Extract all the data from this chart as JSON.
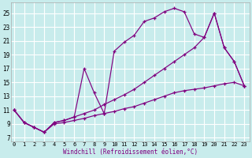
{
  "xlabel": "Windchill (Refroidissement éolien,°C)",
  "background_color": "#c8ecec",
  "line_color": "#800080",
  "grid_color": "#ffffff",
  "x_ticks": [
    0,
    1,
    2,
    3,
    4,
    5,
    6,
    7,
    8,
    9,
    10,
    11,
    12,
    13,
    14,
    15,
    16,
    17,
    18,
    19,
    20,
    21,
    22,
    23
  ],
  "y_ticks": [
    7,
    9,
    11,
    13,
    15,
    17,
    19,
    21,
    23,
    25
  ],
  "xlim": [
    -0.3,
    23.5
  ],
  "ylim": [
    6.5,
    26.5
  ],
  "series1": [
    [
      0,
      11.0
    ],
    [
      1,
      9.2
    ],
    [
      2,
      8.5
    ],
    [
      3,
      7.8
    ],
    [
      4,
      9.2
    ],
    [
      5,
      9.5
    ],
    [
      6,
      10.0
    ],
    [
      7,
      17.0
    ],
    [
      8,
      13.5
    ],
    [
      9,
      10.5
    ],
    [
      10,
      19.5
    ],
    [
      11,
      20.8
    ],
    [
      12,
      21.8
    ],
    [
      13,
      23.8
    ],
    [
      14,
      24.3
    ],
    [
      15,
      25.2
    ],
    [
      16,
      25.7
    ],
    [
      17,
      25.2
    ],
    [
      18,
      22.0
    ],
    [
      19,
      21.5
    ],
    [
      20,
      25.0
    ],
    [
      21,
      20.0
    ],
    [
      22,
      18.0
    ],
    [
      23,
      14.5
    ]
  ],
  "series2": [
    [
      0,
      11.0
    ],
    [
      1,
      9.2
    ],
    [
      2,
      8.5
    ],
    [
      3,
      7.8
    ],
    [
      4,
      9.2
    ],
    [
      5,
      9.5
    ],
    [
      6,
      10.0
    ],
    [
      7,
      10.5
    ],
    [
      8,
      11.0
    ],
    [
      9,
      11.8
    ],
    [
      10,
      12.5
    ],
    [
      11,
      13.2
    ],
    [
      12,
      14.0
    ],
    [
      13,
      15.0
    ],
    [
      14,
      16.0
    ],
    [
      15,
      17.0
    ],
    [
      16,
      18.0
    ],
    [
      17,
      19.0
    ],
    [
      18,
      20.0
    ],
    [
      19,
      21.5
    ],
    [
      20,
      25.0
    ],
    [
      21,
      20.0
    ],
    [
      22,
      18.0
    ],
    [
      23,
      14.5
    ]
  ],
  "series3": [
    [
      0,
      11.0
    ],
    [
      1,
      9.2
    ],
    [
      2,
      8.5
    ],
    [
      3,
      7.8
    ],
    [
      4,
      9.0
    ],
    [
      5,
      9.2
    ],
    [
      6,
      9.5
    ],
    [
      7,
      9.8
    ],
    [
      8,
      10.2
    ],
    [
      9,
      10.5
    ],
    [
      10,
      10.8
    ],
    [
      11,
      11.2
    ],
    [
      12,
      11.5
    ],
    [
      13,
      12.0
    ],
    [
      14,
      12.5
    ],
    [
      15,
      13.0
    ],
    [
      16,
      13.5
    ],
    [
      17,
      13.8
    ],
    [
      18,
      14.0
    ],
    [
      19,
      14.2
    ],
    [
      20,
      14.5
    ],
    [
      21,
      14.8
    ],
    [
      22,
      15.0
    ],
    [
      23,
      14.5
    ]
  ]
}
